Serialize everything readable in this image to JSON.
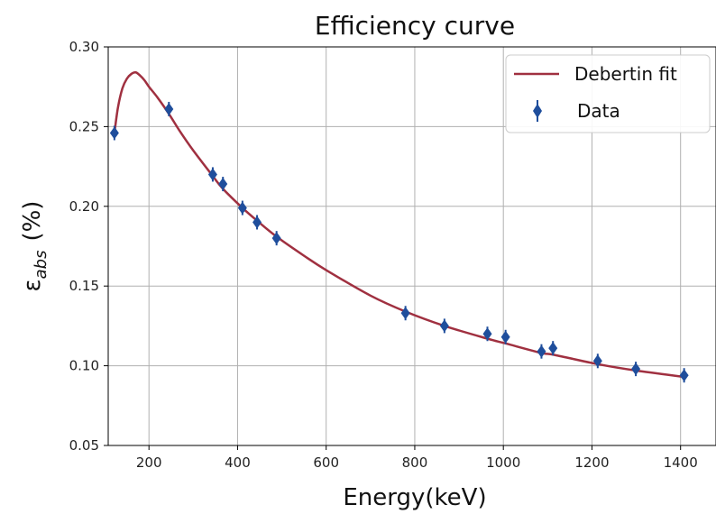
{
  "chart_data": {
    "type": "scatter",
    "title": "Efficiency curve",
    "xlabel": "Energy(keV)",
    "ylabel": {
      "symbol": "ε",
      "subscript": "abs",
      "unit": "(%)"
    },
    "xlim": [
      108,
      1480
    ],
    "ylim": [
      0.05,
      0.3
    ],
    "xticks": [
      200,
      400,
      600,
      800,
      1000,
      1200,
      1400
    ],
    "yticks": [
      0.05,
      0.1,
      0.15,
      0.2,
      0.25,
      0.3
    ],
    "xtick_labels": [
      "200",
      "400",
      "600",
      "800",
      "1000",
      "1200",
      "1400"
    ],
    "ytick_labels": [
      "0.05",
      "0.10",
      "0.15",
      "0.20",
      "0.25",
      "0.30"
    ],
    "grid": true,
    "legend_position": "top-right",
    "series": [
      {
        "name": "Debertin fit",
        "kind": "line",
        "color": "#a03040",
        "x": [
          122,
          130,
          140,
          150,
          160,
          170,
          180,
          190,
          200,
          220,
          245,
          270,
          300,
          344,
          367,
          411,
          444,
          488,
          550,
          600,
          700,
          779,
          867,
          964,
          1005,
          1086,
          1112,
          1213,
          1299,
          1408
        ],
        "y": [
          0.246,
          0.262,
          0.274,
          0.28,
          0.283,
          0.284,
          0.282,
          0.279,
          0.275,
          0.268,
          0.258,
          0.247,
          0.235,
          0.219,
          0.211,
          0.199,
          0.191,
          0.181,
          0.169,
          0.16,
          0.144,
          0.134,
          0.125,
          0.117,
          0.114,
          0.108,
          0.107,
          0.101,
          0.097,
          0.093
        ]
      },
      {
        "name": "Data",
        "kind": "points",
        "color": "#1f4e9c",
        "x": [
          122,
          245,
          344,
          367,
          411,
          444,
          488,
          779,
          867,
          964,
          1005,
          1086,
          1112,
          1213,
          1299,
          1408
        ],
        "y": [
          0.246,
          0.261,
          0.22,
          0.214,
          0.199,
          0.19,
          0.18,
          0.133,
          0.125,
          0.12,
          0.118,
          0.109,
          0.111,
          0.103,
          0.098,
          0.094
        ]
      }
    ]
  }
}
